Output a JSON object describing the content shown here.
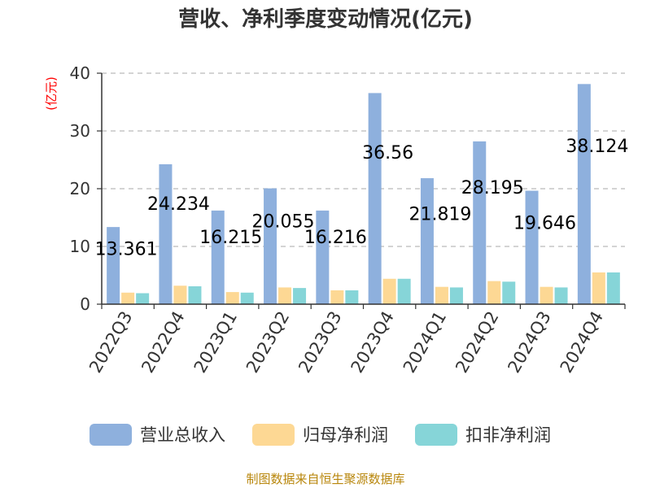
{
  "chart_data": {
    "type": "bar",
    "title": "营收、净利季度变动情况(亿元)",
    "unit_label": "(亿元)",
    "xlabel": "",
    "ylabel": "",
    "ylim": [
      0,
      40
    ],
    "yticks": [
      "0",
      "10",
      "20",
      "30",
      "40"
    ],
    "grid": true,
    "legend_position": "bottom",
    "categories": [
      "2022Q3",
      "2022Q4",
      "2023Q1",
      "2023Q2",
      "2023Q3",
      "2023Q4",
      "2024Q1",
      "2024Q2",
      "2024Q3",
      "2024Q4"
    ],
    "series": [
      {
        "name": "营业总收入",
        "color": "#8eb0dd",
        "values": [
          13.361,
          24.234,
          16.215,
          20.055,
          16.216,
          36.56,
          21.819,
          28.195,
          19.646,
          38.124
        ]
      },
      {
        "name": "归母净利润",
        "color": "#fdd894",
        "values": [
          2.0,
          3.2,
          2.1,
          2.9,
          2.4,
          4.4,
          3.0,
          4.0,
          3.0,
          5.5
        ]
      },
      {
        "name": "扣非净利润",
        "color": "#86d5d8",
        "values": [
          1.9,
          3.1,
          2.0,
          2.8,
          2.4,
          4.4,
          2.9,
          3.9,
          2.9,
          5.5
        ]
      }
    ],
    "data_labels": [
      "13.361",
      "24.234",
      "16.215",
      "20.055",
      "16.216",
      "36.56",
      "21.819",
      "28.195",
      "19.646",
      "38.124"
    ]
  },
  "footer": {
    "source": "制图数据来自恒生聚源数据库"
  }
}
